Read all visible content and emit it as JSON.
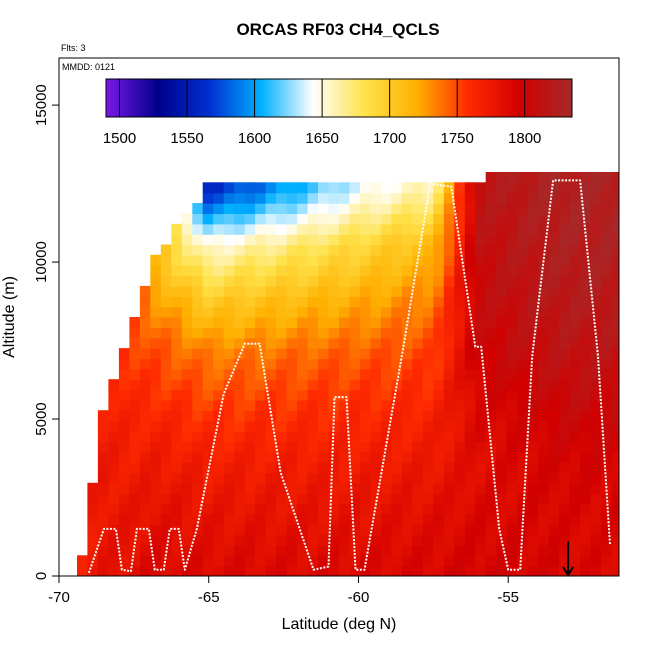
{
  "chart_data": {
    "type": "heatmap",
    "title": "ORCAS RF03 CH4_QCLS",
    "top_left_notes": [
      "Flts: 3",
      "MMDD: 0121"
    ],
    "xlabel": "Latitude (deg N)",
    "ylabel": "Altitude (m)",
    "xlim": [
      -70,
      -51.3
    ],
    "ylim": [
      0,
      16500
    ],
    "x_ticks": [
      -70,
      -65,
      -60,
      -55
    ],
    "x_tick_labels": [
      "-70",
      "-65",
      "-60",
      "-55"
    ],
    "y_ticks": [
      0,
      5000,
      10000,
      15000
    ],
    "y_tick_labels": [
      "0",
      "5000",
      "10000",
      "15000"
    ],
    "colorbar": {
      "range": [
        1490,
        1835
      ],
      "ticks": [
        1500,
        1550,
        1600,
        1650,
        1700,
        1750,
        1800
      ],
      "tick_labels": [
        "1500",
        "1550",
        "1600",
        "1650",
        "1700",
        "1750",
        "1800"
      ],
      "colors": [
        "#7b17e8",
        "#00008c",
        "#0030d0",
        "#00b0ff",
        "#ffffff",
        "#ffe24a",
        "#ffb000",
        "#ff2a00",
        "#d10000",
        "#a52a2a"
      ]
    },
    "field_columns": [
      {
        "lat": -69.3,
        "alt_top": 0,
        "values": [
          1770,
          1770
        ]
      },
      {
        "lat": -68.5,
        "alt_top": 5200,
        "values": [
          1780,
          1775,
          1770
        ]
      },
      {
        "lat": -67.5,
        "alt_top": 8000,
        "values": [
          1785,
          1775,
          1762,
          1750
        ]
      },
      {
        "lat": -66.8,
        "alt_top": 10000,
        "values": [
          1790,
          1780,
          1765,
          1745,
          1710
        ]
      },
      {
        "lat": -65.0,
        "alt_top": 12300,
        "values": [
          1790,
          1780,
          1770,
          1755,
          1735,
          1700,
          1650,
          1560
        ]
      },
      {
        "lat": -60.0,
        "alt_top": 12300,
        "values": [
          1790,
          1782,
          1772,
          1760,
          1745,
          1720,
          1690,
          1640
        ]
      },
      {
        "lat": -57.5,
        "alt_top": 12400,
        "values": [
          1792,
          1785,
          1775,
          1765,
          1752,
          1735,
          1710,
          1660
        ]
      },
      {
        "lat": -56.0,
        "alt_top": 12500,
        "values": [
          1795,
          1790,
          1785,
          1790,
          1800,
          1805,
          1810,
          1815
        ]
      },
      {
        "lat": -54.0,
        "alt_top": 12800,
        "values": [
          1795,
          1792,
          1792,
          1800,
          1810,
          1818,
          1822,
          1825
        ]
      },
      {
        "lat": -53.0,
        "alt_top": 12800,
        "values": [
          1790,
          1790,
          1795,
          1805,
          1815,
          1822,
          1826,
          1828
        ]
      }
    ],
    "flight_track": [
      [
        -69.0,
        100
      ],
      [
        -68.5,
        1500
      ],
      [
        -68.1,
        1500
      ],
      [
        -67.9,
        200
      ],
      [
        -67.6,
        150
      ],
      [
        -67.4,
        1500
      ],
      [
        -67.0,
        1500
      ],
      [
        -66.8,
        200
      ],
      [
        -66.5,
        200
      ],
      [
        -66.3,
        1500
      ],
      [
        -66.0,
        1500
      ],
      [
        -65.8,
        200
      ],
      [
        -65.4,
        1500
      ],
      [
        -64.5,
        5800
      ],
      [
        -63.8,
        7400
      ],
      [
        -63.3,
        7400
      ],
      [
        -62.6,
        3300
      ],
      [
        -61.5,
        200
      ],
      [
        -61.0,
        300
      ],
      [
        -60.8,
        5700
      ],
      [
        -60.4,
        5700
      ],
      [
        -60.1,
        200
      ],
      [
        -59.8,
        200
      ],
      [
        -58.5,
        7300
      ],
      [
        -57.6,
        12500
      ],
      [
        -56.9,
        12400
      ],
      [
        -56.1,
        7300
      ],
      [
        -55.9,
        7300
      ],
      [
        -55.3,
        1500
      ],
      [
        -55.0,
        200
      ],
      [
        -54.6,
        200
      ],
      [
        -54.2,
        7000
      ],
      [
        -53.5,
        12600
      ],
      [
        -52.6,
        12600
      ],
      [
        -52.0,
        7000
      ],
      [
        -51.6,
        1000
      ]
    ],
    "arrow": {
      "lat": -53.0,
      "label": ""
    },
    "grid": false,
    "legend": "colorbar-top-inset"
  }
}
